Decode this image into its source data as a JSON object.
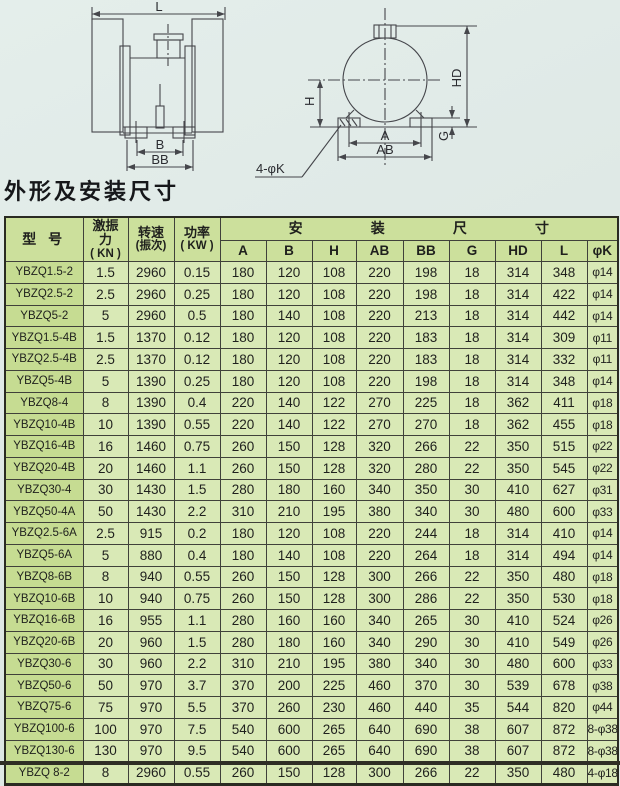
{
  "page_title": "外形及安装尺寸",
  "drawings": {
    "left_view": {
      "length_label": "L",
      "width_inner_label": "B",
      "width_outer_label": "BB"
    },
    "end_view": {
      "half_height_label": "H",
      "total_height_label": "HD",
      "inner_span_label": "A",
      "outer_span_label": "AB",
      "foot_label": "G",
      "holes_label": "4-φK"
    }
  },
  "table": {
    "header": {
      "model": "型  号",
      "force_lines": [
        "激振",
        "力",
        "( KN )"
      ],
      "speed_lines": [
        "转速",
        "(振次)"
      ],
      "power_lines": [
        "功率",
        "( KW )"
      ],
      "group_chars": [
        "安",
        "装",
        "尺",
        "寸"
      ],
      "dims": [
        "A",
        "B",
        "H",
        "AB",
        "BB",
        "G",
        "HD",
        "L",
        "φK"
      ]
    },
    "rows": [
      [
        "YBZQ1.5-2",
        "1.5",
        "2960",
        "0.15",
        "180",
        "120",
        "108",
        "220",
        "198",
        "18",
        "314",
        "348",
        "φ14"
      ],
      [
        "YBZQ2.5-2",
        "2.5",
        "2960",
        "0.25",
        "180",
        "120",
        "108",
        "220",
        "198",
        "18",
        "314",
        "422",
        "φ14"
      ],
      [
        "YBZQ5-2",
        "5",
        "2960",
        "0.5",
        "180",
        "140",
        "108",
        "220",
        "213",
        "18",
        "314",
        "442",
        "φ14"
      ],
      [
        "YBZQ1.5-4B",
        "1.5",
        "1370",
        "0.12",
        "180",
        "120",
        "108",
        "220",
        "183",
        "18",
        "314",
        "309",
        "φ11"
      ],
      [
        "YBZQ2.5-4B",
        "2.5",
        "1370",
        "0.12",
        "180",
        "120",
        "108",
        "220",
        "183",
        "18",
        "314",
        "332",
        "φ11"
      ],
      [
        "YBZQ5-4B",
        "5",
        "1390",
        "0.25",
        "180",
        "120",
        "108",
        "220",
        "198",
        "18",
        "314",
        "348",
        "φ14"
      ],
      [
        "YBZQ8-4",
        "8",
        "1390",
        "0.4",
        "220",
        "140",
        "122",
        "270",
        "225",
        "18",
        "362",
        "411",
        "φ18"
      ],
      [
        "YBZQ10-4B",
        "10",
        "1390",
        "0.55",
        "220",
        "140",
        "122",
        "270",
        "270",
        "18",
        "362",
        "455",
        "φ18"
      ],
      [
        "YBZQ16-4B",
        "16",
        "1460",
        "0.75",
        "260",
        "150",
        "128",
        "320",
        "266",
        "22",
        "350",
        "515",
        "φ22"
      ],
      [
        "YBZQ20-4B",
        "20",
        "1460",
        "1.1",
        "260",
        "150",
        "128",
        "320",
        "280",
        "22",
        "350",
        "545",
        "φ22"
      ],
      [
        "YBZQ30-4",
        "30",
        "1430",
        "1.5",
        "280",
        "180",
        "160",
        "340",
        "350",
        "30",
        "410",
        "627",
        "φ31"
      ],
      [
        "YBZQ50-4A",
        "50",
        "1430",
        "2.2",
        "310",
        "210",
        "195",
        "380",
        "340",
        "30",
        "480",
        "600",
        "φ33"
      ],
      [
        "YBZQ2.5-6A",
        "2.5",
        "915",
        "0.2",
        "180",
        "120",
        "108",
        "220",
        "244",
        "18",
        "314",
        "410",
        "φ14"
      ],
      [
        "YBZQ5-6A",
        "5",
        "880",
        "0.4",
        "180",
        "140",
        "108",
        "220",
        "264",
        "18",
        "314",
        "494",
        "φ14"
      ],
      [
        "YBZQ8-6B",
        "8",
        "940",
        "0.55",
        "260",
        "150",
        "128",
        "300",
        "266",
        "22",
        "350",
        "480",
        "φ18"
      ],
      [
        "YBZQ10-6B",
        "10",
        "940",
        "0.75",
        "260",
        "150",
        "128",
        "300",
        "286",
        "22",
        "350",
        "530",
        "φ18"
      ],
      [
        "YBZQ16-6B",
        "16",
        "955",
        "1.1",
        "280",
        "160",
        "160",
        "340",
        "265",
        "30",
        "410",
        "524",
        "φ26"
      ],
      [
        "YBZQ20-6B",
        "20",
        "960",
        "1.5",
        "280",
        "180",
        "160",
        "340",
        "290",
        "30",
        "410",
        "549",
        "φ26"
      ],
      [
        "YBZQ30-6",
        "30",
        "960",
        "2.2",
        "310",
        "210",
        "195",
        "380",
        "340",
        "30",
        "480",
        "600",
        "φ33"
      ],
      [
        "YBZQ50-6",
        "50",
        "970",
        "3.7",
        "370",
        "200",
        "225",
        "460",
        "370",
        "30",
        "539",
        "678",
        "φ38"
      ],
      [
        "YBZQ75-6",
        "75",
        "970",
        "5.5",
        "370",
        "260",
        "230",
        "460",
        "440",
        "35",
        "544",
        "820",
        "φ44"
      ],
      [
        "YBZQ100-6",
        "100",
        "970",
        "7.5",
        "540",
        "600",
        "265",
        "640",
        "690",
        "38",
        "607",
        "872",
        "8-φ38"
      ],
      [
        "YBZQ130-6",
        "130",
        "970",
        "9.5",
        "540",
        "600",
        "265",
        "640",
        "690",
        "38",
        "607",
        "872",
        "8-φ38"
      ],
      [
        "YBZQ 8-2",
        "8",
        "2960",
        "0.55",
        "260",
        "150",
        "128",
        "300",
        "266",
        "22",
        "350",
        "480",
        "4-φ18"
      ]
    ]
  },
  "colors": {
    "page_bg": "#dfe9e5",
    "header_bg": "#cce09c",
    "model_col_bg": "#c6dc92",
    "cell_bg": "#d9e9b6",
    "border": "#40413a"
  }
}
